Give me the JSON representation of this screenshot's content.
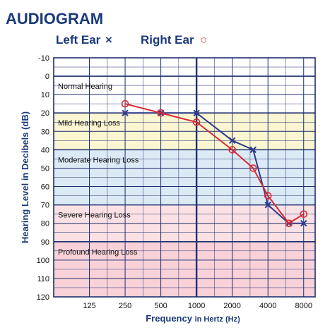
{
  "chart_data": {
    "type": "line",
    "title": "AUDIOGRAM",
    "xlabel": "Frequency",
    "xlabel_suffix": "in Hertz (Hz)",
    "ylabel": "Hearing Level in Decibels (dB)",
    "x_scale": "log2",
    "x_ticks": [
      125,
      250,
      500,
      1000,
      2000,
      4000,
      8000
    ],
    "x_tick_labels": [
      "125",
      "250",
      "500",
      "1000",
      "2000",
      "4000",
      "8000"
    ],
    "y_ticks": [
      -10,
      0,
      10,
      20,
      30,
      40,
      50,
      60,
      70,
      80,
      90,
      100,
      110,
      120
    ],
    "ylim": [
      -10,
      120
    ],
    "y_inverted": true,
    "grid": true,
    "legend_position": "top",
    "bands": [
      {
        "label": "Normal Hearing",
        "from": 0,
        "to": 20,
        "color": "#ffffff"
      },
      {
        "label": "Mild Hearing Loss",
        "from": 20,
        "to": 40,
        "color": "#fbf6d2"
      },
      {
        "label": "Moderate Hearing Loss",
        "from": 40,
        "to": 70,
        "color": "#dceaf6"
      },
      {
        "label": "Severe Hearing Loss",
        "from": 70,
        "to": 90,
        "color": "#fbe1e4"
      },
      {
        "label": "Profound Hearing Loss",
        "from": 90,
        "to": 120,
        "color": "#f8d2d8"
      }
    ],
    "series": [
      {
        "name": "Left Ear",
        "symbol": "×",
        "marker": "x",
        "color": "#2e3a8c",
        "x": [
          250,
          500,
          1000,
          2000,
          3000,
          4000,
          6000,
          8000
        ],
        "y": [
          20,
          20,
          20,
          35,
          40,
          70,
          80,
          80
        ]
      },
      {
        "name": "Right Ear",
        "symbol": "○",
        "marker": "o",
        "color": "#d92b35",
        "x": [
          250,
          500,
          1000,
          2000,
          3000,
          4000,
          6000,
          8000
        ],
        "y": [
          15,
          20,
          25,
          40,
          50,
          65,
          80,
          75
        ]
      }
    ]
  }
}
